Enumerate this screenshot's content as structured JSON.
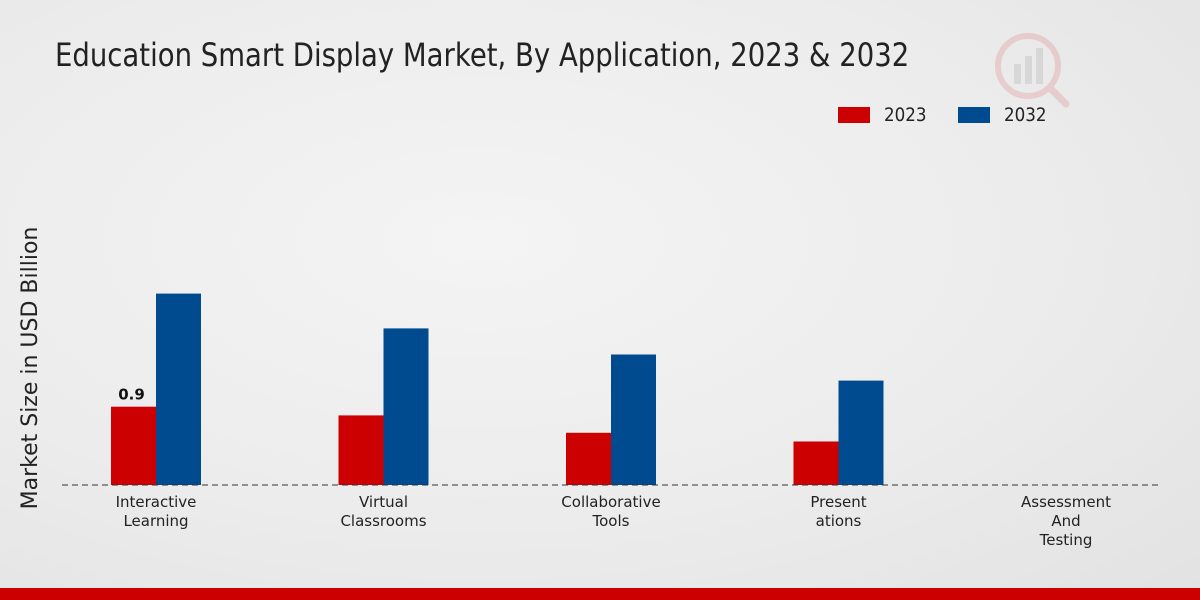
{
  "chart_data": {
    "type": "bar",
    "title": "Education Smart Display Market, By Application, 2023 & 2032",
    "xlabel": "",
    "ylabel": "Market Size in USD Billion",
    "categories": [
      [
        "Interactive",
        "Learning"
      ],
      [
        "Virtual",
        "Classrooms"
      ],
      [
        "Collaborative",
        "Tools"
      ],
      [
        "Present",
        "ations"
      ],
      [
        "Assessment",
        "And",
        "Testing"
      ]
    ],
    "series": [
      {
        "name": "2023",
        "color": "#cc0000",
        "values": [
          0.9,
          0.8,
          0.6,
          0.5,
          0
        ]
      },
      {
        "name": "2032",
        "color": "#004a8f",
        "values": [
          2.2,
          1.8,
          1.5,
          1.2,
          0
        ]
      }
    ],
    "data_labels": [
      {
        "series": 0,
        "index": 0,
        "text": "0.9"
      }
    ],
    "ylim": [
      0,
      3.0
    ],
    "grid": false,
    "legend_position": "top-right"
  }
}
